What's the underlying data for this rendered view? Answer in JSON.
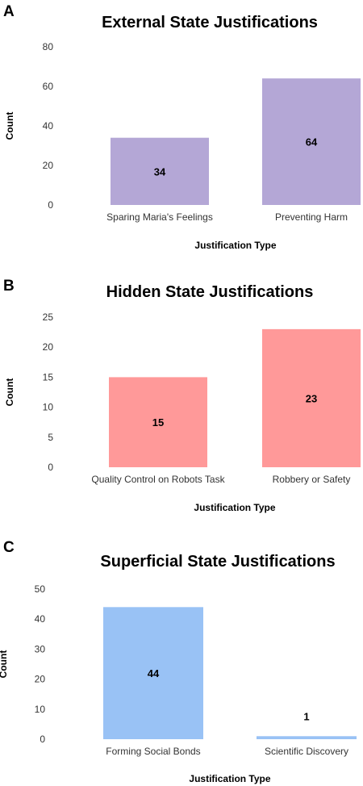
{
  "chart_data": [
    {
      "panel_label": "A",
      "type": "bar",
      "title": "External State Justifications",
      "xlabel": "Justification Type",
      "ylabel": "Count",
      "categories": [
        "Sparing Maria's Feelings",
        "Preventing Harm"
      ],
      "values": [
        34,
        64
      ],
      "value_labels": [
        "34",
        "64"
      ],
      "ylim": [
        0,
        80
      ],
      "yticks": [
        0,
        20,
        40,
        60,
        80
      ],
      "ytick_labels": [
        "0",
        "20",
        "40",
        "60",
        "80"
      ],
      "bar_color": "#b4a7d6",
      "grid": false,
      "legend": "none"
    },
    {
      "panel_label": "B",
      "type": "bar",
      "title": "Hidden State Justifications",
      "xlabel": "Justification Type",
      "ylabel": "Count",
      "categories": [
        "Quality Control on Robots Task",
        "Robbery or Safety"
      ],
      "values": [
        15,
        23
      ],
      "value_labels": [
        "15",
        "23"
      ],
      "ylim": [
        0,
        25
      ],
      "yticks": [
        0,
        5,
        10,
        15,
        20,
        25
      ],
      "ytick_labels": [
        "0",
        "5",
        "10",
        "15",
        "20",
        "25"
      ],
      "bar_color": "#ff9999",
      "grid": false,
      "legend": "none"
    },
    {
      "panel_label": "C",
      "type": "bar",
      "title": "Superficial State Justifications",
      "xlabel": "Justification Type",
      "ylabel": "Count",
      "categories": [
        "Forming Social Bonds",
        "Scientific Discovery"
      ],
      "values": [
        44,
        1
      ],
      "value_labels": [
        "44",
        "1"
      ],
      "ylim": [
        0,
        50
      ],
      "yticks": [
        0,
        10,
        20,
        30,
        40,
        50
      ],
      "ytick_labels": [
        "0",
        "10",
        "20",
        "30",
        "40",
        "50"
      ],
      "bar_color": "#99c2f5",
      "grid": false,
      "legend": "none"
    }
  ]
}
